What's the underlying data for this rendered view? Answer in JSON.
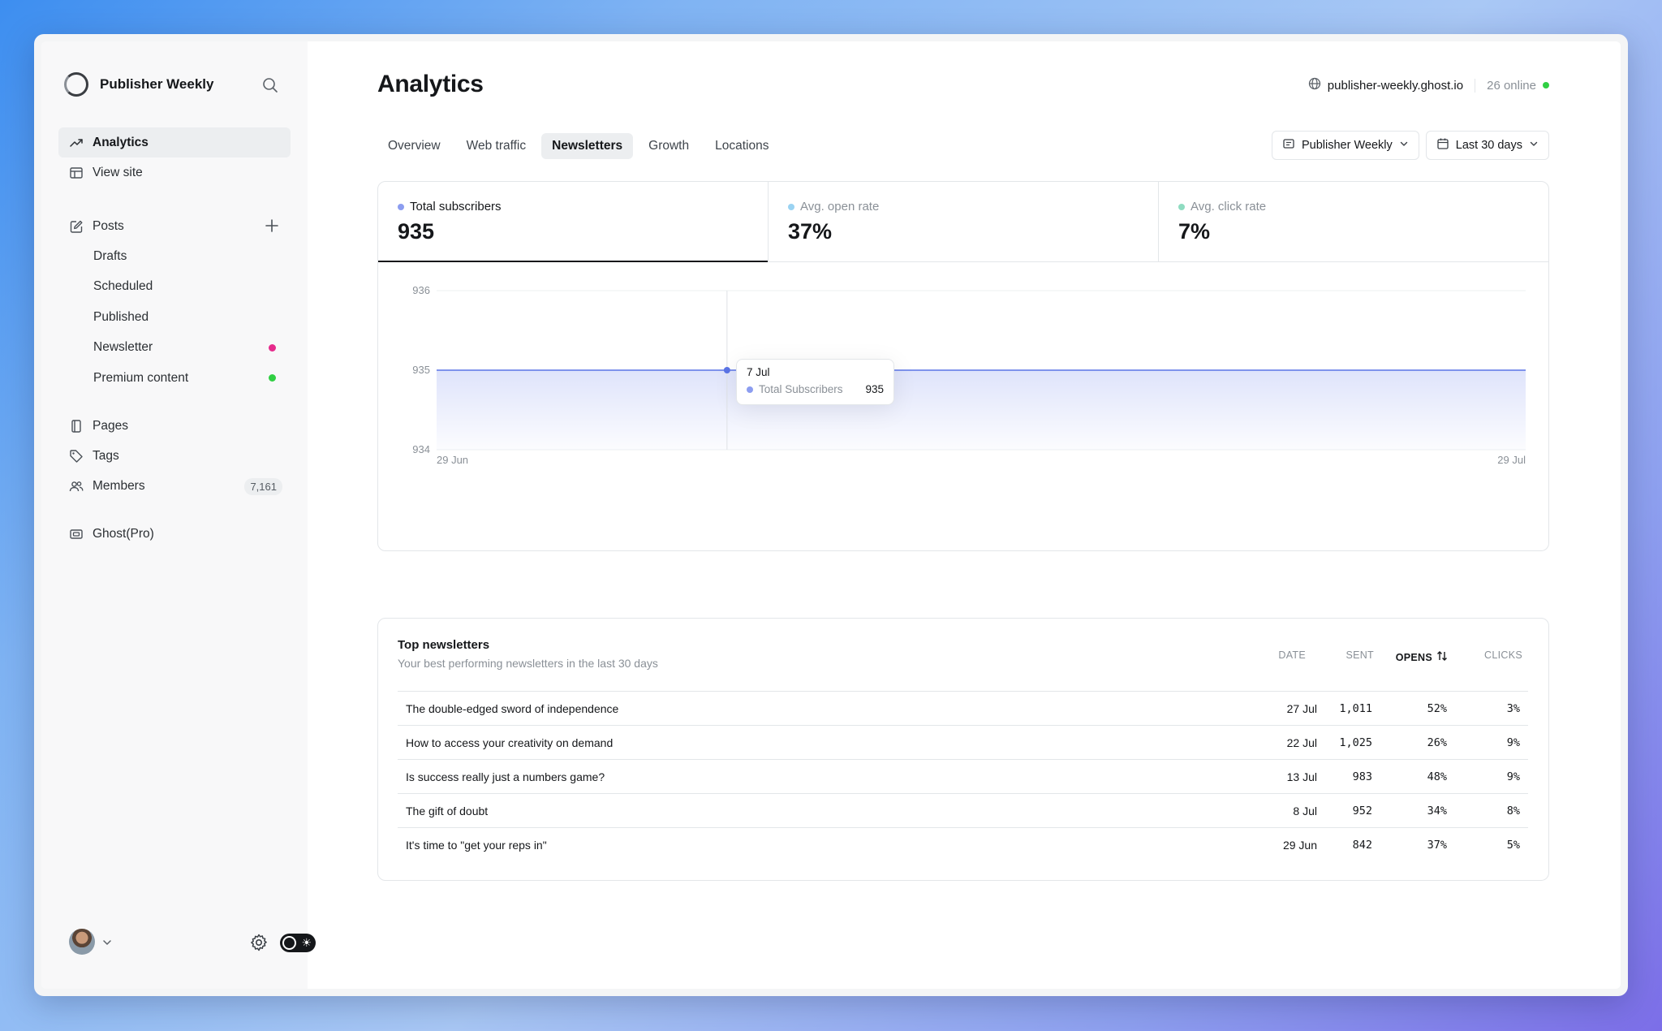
{
  "sidebar": {
    "brand": "Publisher Weekly",
    "nav": {
      "analytics": "Analytics",
      "view_site": "View site",
      "posts": "Posts",
      "drafts": "Drafts",
      "scheduled": "Scheduled",
      "published": "Published",
      "newsletter": "Newsletter",
      "premium": "Premium content",
      "pages": "Pages",
      "tags": "Tags",
      "members": "Members",
      "members_count": "7,161",
      "ghost_pro": "Ghost(Pro)"
    },
    "colors": {
      "newsletter_dot": "#e62b8c",
      "premium_dot": "#30cf43"
    }
  },
  "header": {
    "title": "Analytics",
    "site_url": "publisher-weekly.ghost.io",
    "online": "26 online"
  },
  "tabs": [
    "Overview",
    "Web traffic",
    "Newsletters",
    "Growth",
    "Locations"
  ],
  "active_tab": "Newsletters",
  "filters": {
    "newsletter": "Publisher Weekly",
    "range": "Last 30 days"
  },
  "kpis": [
    {
      "label": "Total subscribers",
      "value": "935",
      "color": "#8c9df0"
    },
    {
      "label": "Avg. open rate",
      "value": "37%",
      "color": "#9ad3f2"
    },
    {
      "label": "Avg. click rate",
      "value": "7%",
      "color": "#8fdcc1"
    }
  ],
  "chart_data": {
    "type": "area",
    "x_start_label": "29 Jun",
    "x_end_label": "29 Jul",
    "yticks": [
      "936",
      "935",
      "934"
    ],
    "ylim": [
      934,
      936
    ],
    "series": [
      {
        "name": "Total Subscribers",
        "values": [
          935,
          935
        ]
      }
    ],
    "color": "#5b74e6",
    "tooltip": {
      "date": "7 Jul",
      "series": "Total Subscribers",
      "value": "935"
    },
    "grid": true
  },
  "table": {
    "title": "Top newsletters",
    "subtitle": "Your best performing newsletters in the last 30 days",
    "headers": {
      "date": "DATE",
      "sent": "SENT",
      "opens": "OPENS",
      "clicks": "CLICKS"
    },
    "rows": [
      {
        "title": "The double-edged sword of independence",
        "date": "27 Jul",
        "sent": "1,011",
        "opens": "52%",
        "clicks": "3%"
      },
      {
        "title": "How to access your creativity on demand",
        "date": "22 Jul",
        "sent": "1,025",
        "opens": "26%",
        "clicks": "9%"
      },
      {
        "title": "Is success really just a numbers game?",
        "date": "13 Jul",
        "sent": "983",
        "opens": "48%",
        "clicks": "9%"
      },
      {
        "title": "The gift of doubt",
        "date": "8 Jul",
        "sent": "952",
        "opens": "34%",
        "clicks": "8%"
      },
      {
        "title": "It's time to \"get your reps in\"",
        "date": "29 Jun",
        "sent": "842",
        "opens": "37%",
        "clicks": "5%"
      }
    ]
  }
}
